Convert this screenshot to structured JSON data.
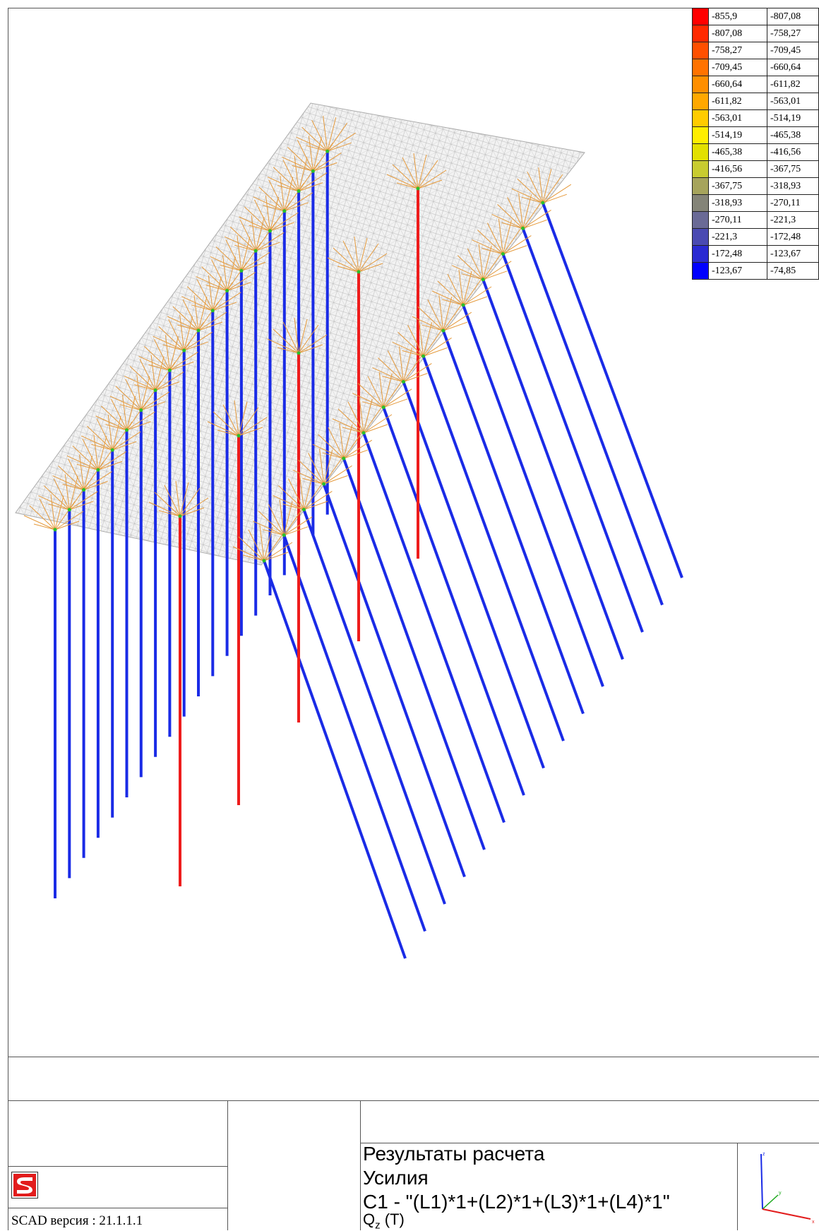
{
  "legend": {
    "rows": [
      {
        "from": "-855,9",
        "to": "-807,08",
        "color": "#ff0000"
      },
      {
        "from": "-807,08",
        "to": "-758,27",
        "color": "#ff2a00"
      },
      {
        "from": "-758,27",
        "to": "-709,45",
        "color": "#ff5000"
      },
      {
        "from": "-709,45",
        "to": "-660,64",
        "color": "#ff7300"
      },
      {
        "from": "-660,64",
        "to": "-611,82",
        "color": "#ff8f00"
      },
      {
        "from": "-611,82",
        "to": "-563,01",
        "color": "#ffa800"
      },
      {
        "from": "-563,01",
        "to": "-514,19",
        "color": "#ffcc00"
      },
      {
        "from": "-514,19",
        "to": "-465,38",
        "color": "#ffee00"
      },
      {
        "from": "-465,38",
        "to": "-416,56",
        "color": "#e2e000"
      },
      {
        "from": "-416,56",
        "to": "-367,75",
        "color": "#c8cc30"
      },
      {
        "from": "-367,75",
        "to": "-318,93",
        "color": "#a6a45c"
      },
      {
        "from": "-318,93",
        "to": "-270,11",
        "color": "#848478"
      },
      {
        "from": "-270,11",
        "to": "-221,3",
        "color": "#6a6a96"
      },
      {
        "from": "-221,3",
        "to": "-172,48",
        "color": "#4a4ab2"
      },
      {
        "from": "-172,48",
        "to": "-123,67",
        "color": "#2a2ad2"
      },
      {
        "from": "-123,67",
        "to": "-74,85",
        "color": "#0000ff"
      }
    ]
  },
  "colors": {
    "pile_low": "#1a2be6",
    "pile_high": "#ee1c1c",
    "cap_mesh": "#bdbdbd",
    "spider": "#e59a3c"
  },
  "title_block": {
    "line1": "Результаты расчета",
    "line2": "Усилия",
    "combination": "С1 - \"(L1)*1+(L2)*1+(L3)*1+(L4)*1\"",
    "quantity": "Q",
    "quantity_sub": "z",
    "unit": " (Т)",
    "version": "SCAD версия : 21.1.1.1"
  },
  "logo_icon": "scad-logo-icon",
  "axes_icon": "coordinate-axes-icon"
}
